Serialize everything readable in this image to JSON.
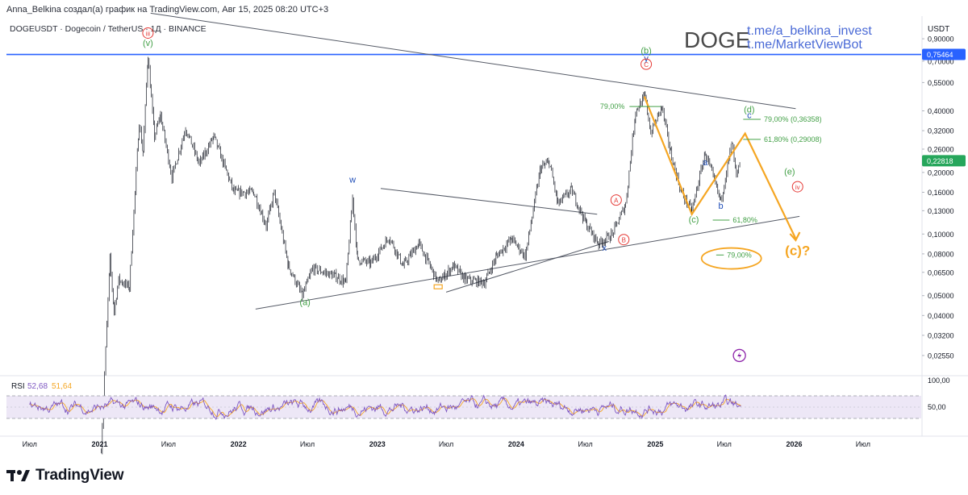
{
  "header": {
    "author_line": "Anna_Belkina создал(а) график на TradingView.com, Авг 15, 2025 08:20 UTC+3",
    "symbol_line": "DOGEUSDT · Dogecoin / TetherUS · 1Д · BINANCE"
  },
  "watermark": {
    "ticker": "DOGE",
    "link1": "t.me/a_belkina_invest",
    "link2": "t.me/MarketViewBot"
  },
  "brand": {
    "name": "TradingView",
    "logo_icon": "tradingview-logo-icon"
  },
  "colors": {
    "candles": "#131722",
    "resistance_line": "#2962ff",
    "projection": "#f5a623",
    "wave_green": "#43a047",
    "wave_red": "#e53935",
    "wave_blue": "#1e4db7",
    "price_badge": "#26a65b",
    "rsi_line": "#7e57c2",
    "rsi_ma": "#f5a623",
    "rsi_band": "#ede7f6"
  },
  "chart_data": [
    {
      "type": "candlestick",
      "scale": "log",
      "currency_label": "USDT",
      "y_ticks": [
        "0,90000",
        "0,70000",
        "0,55000",
        "0,40000",
        "0,32000",
        "0,26000",
        "0,20000",
        "0,16000",
        "0,13000",
        "0,10000",
        "0,08000",
        "0,06500",
        "0,05000",
        "0,04000",
        "0,03200",
        "0,02550"
      ],
      "y_tick_values": [
        0.9,
        0.7,
        0.55,
        0.4,
        0.32,
        0.26,
        0.2,
        0.16,
        0.13,
        0.1,
        0.08,
        0.065,
        0.05,
        0.04,
        0.032,
        0.0255
      ],
      "ylim": [
        0.0205,
        1.08
      ],
      "x_ticks": [
        "Июл",
        "2021",
        "Июл",
        "2022",
        "Июл",
        "2023",
        "Июл",
        "2024",
        "Июл",
        "2025",
        "Июл",
        "2026",
        "Июл"
      ],
      "x_tick_dates": [
        "2020-07-01",
        "2021-01-01",
        "2021-07-01",
        "2022-01-01",
        "2022-07-01",
        "2023-01-01",
        "2023-07-01",
        "2024-01-01",
        "2024-07-01",
        "2025-01-01",
        "2025-07-01",
        "2026-01-01",
        "2026-07-01"
      ],
      "x_range": [
        "2020-05-01",
        "2026-12-01"
      ],
      "resistance_level": {
        "value": 0.75464,
        "label": "0,75464"
      },
      "last_price": {
        "value": 0.22818,
        "label": "0,22818"
      },
      "price_path": [
        [
          "2021-01-05",
          0.009
        ],
        [
          "2021-01-28",
          0.075
        ],
        [
          "2021-02-08",
          0.042
        ],
        [
          "2021-02-20",
          0.06
        ],
        [
          "2021-03-20",
          0.055
        ],
        [
          "2021-04-15",
          0.35
        ],
        [
          "2021-04-25",
          0.25
        ],
        [
          "2021-05-08",
          0.74
        ],
        [
          "2021-05-25",
          0.3
        ],
        [
          "2021-06-10",
          0.38
        ],
        [
          "2021-07-10",
          0.19
        ],
        [
          "2021-08-15",
          0.33
        ],
        [
          "2021-09-20",
          0.22
        ],
        [
          "2021-10-28",
          0.3
        ],
        [
          "2021-12-20",
          0.16
        ],
        [
          "2022-02-10",
          0.16
        ],
        [
          "2022-03-15",
          0.11
        ],
        [
          "2022-04-05",
          0.16
        ],
        [
          "2022-05-12",
          0.07
        ],
        [
          "2022-06-18",
          0.05
        ],
        [
          "2022-07-15",
          0.068
        ],
        [
          "2022-09-15",
          0.062
        ],
        [
          "2022-10-10",
          0.058
        ],
        [
          "2022-10-28",
          0.15
        ],
        [
          "2022-11-10",
          0.075
        ],
        [
          "2022-12-15",
          0.072
        ],
        [
          "2023-02-01",
          0.097
        ],
        [
          "2023-03-10",
          0.07
        ],
        [
          "2023-04-20",
          0.09
        ],
        [
          "2023-06-10",
          0.058
        ],
        [
          "2023-07-20",
          0.07
        ],
        [
          "2023-08-20",
          0.06
        ],
        [
          "2023-10-10",
          0.058
        ],
        [
          "2023-11-10",
          0.078
        ],
        [
          "2023-12-20",
          0.095
        ],
        [
          "2024-01-25",
          0.078
        ],
        [
          "2024-03-05",
          0.21
        ],
        [
          "2024-03-28",
          0.225
        ],
        [
          "2024-04-20",
          0.14
        ],
        [
          "2024-05-25",
          0.165
        ],
        [
          "2024-07-05",
          0.11
        ],
        [
          "2024-08-05",
          0.09
        ],
        [
          "2024-09-10",
          0.1
        ],
        [
          "2024-10-15",
          0.14
        ],
        [
          "2024-11-10",
          0.4
        ],
        [
          "2024-12-05",
          0.47
        ],
        [
          "2024-12-20",
          0.31
        ],
        [
          "2025-01-18",
          0.42
        ],
        [
          "2025-02-10",
          0.25
        ],
        [
          "2025-03-10",
          0.16
        ],
        [
          "2025-04-07",
          0.13
        ],
        [
          "2025-05-12",
          0.25
        ],
        [
          "2025-06-22",
          0.145
        ],
        [
          "2025-07-21",
          0.28
        ],
        [
          "2025-08-02",
          0.19
        ],
        [
          "2025-08-14",
          0.228
        ]
      ],
      "trendlines": [
        {
          "name": "upper-resistance",
          "from": [
            "2021-05-15",
            1.2
          ],
          "to": [
            "2026-01-05",
            0.41
          ]
        },
        {
          "name": "lower-support",
          "from": [
            "2022-02-15",
            0.043
          ],
          "to": [
            "2026-01-15",
            0.122
          ]
        },
        {
          "name": "descending-2023",
          "from": [
            "2023-01-10",
            0.167
          ],
          "to": [
            "2024-08-01",
            0.125
          ]
        },
        {
          "name": "rising-2023",
          "from": [
            "2023-07-01",
            0.052
          ],
          "to": [
            "2024-09-01",
            0.092
          ]
        }
      ],
      "projection_path": [
        [
          "2024-12-03",
          0.47
        ],
        [
          "2025-04-07",
          0.125
        ],
        [
          "2025-08-25",
          0.31
        ],
        [
          "2026-01-05",
          0.095
        ]
      ],
      "fib_levels": [
        {
          "label": "79,00%",
          "value": 0.42,
          "from": "2024-10-25",
          "to": "2025-01-15",
          "label_side": "left"
        },
        {
          "label": "79,00% (0,36358)",
          "value": 0.36358,
          "from": "2025-08-20",
          "to": "2025-10-05",
          "label_side": "right"
        },
        {
          "label": "61,80% (0,29008)",
          "value": 0.29008,
          "from": "2025-08-20",
          "to": "2025-10-05",
          "label_side": "right"
        },
        {
          "label": "61,80%",
          "value": 0.117,
          "from": "2025-06-01",
          "to": "2025-07-15",
          "label_side": "right"
        },
        {
          "label": "79,00%",
          "value": 0.079,
          "from": "2025-06-10",
          "to": "2025-06-30",
          "label_side": "right"
        }
      ],
      "target_zone": {
        "center": [
          "2025-07-20",
          0.076
        ],
        "note": "oval highlight"
      },
      "wave_labels": [
        {
          "text": "iii",
          "date": "2021-05-08",
          "value": 0.93,
          "color": "red",
          "circled": true
        },
        {
          "text": "(v)",
          "date": "2021-05-08",
          "value": 0.83,
          "color": "green"
        },
        {
          "text": "(a)",
          "date": "2022-06-25",
          "value": 0.045,
          "color": "green"
        },
        {
          "text": "w",
          "date": "2022-10-28",
          "value": 0.178,
          "color": "blue"
        },
        {
          "text": "x",
          "date": "2024-08-20",
          "value": 0.083,
          "color": "blue"
        },
        {
          "text": "A",
          "date": "2024-09-20",
          "value": 0.142,
          "color": "red",
          "circled": true
        },
        {
          "text": "B",
          "date": "2024-10-10",
          "value": 0.091,
          "color": "red",
          "circled": true
        },
        {
          "text": "y",
          "date": "2024-12-08",
          "value": 0.7,
          "color": "blue"
        },
        {
          "text": "(b)",
          "date": "2024-12-08",
          "value": 0.76,
          "color": "green"
        },
        {
          "text": "C",
          "date": "2024-12-08",
          "value": 0.655,
          "color": "red",
          "circled": true
        },
        {
          "text": "a",
          "date": "2025-05-12",
          "value": 0.217,
          "color": "blue"
        },
        {
          "text": "b",
          "date": "2025-06-22",
          "value": 0.133,
          "color": "blue"
        },
        {
          "text": "(c)",
          "date": "2025-04-12",
          "value": 0.114,
          "color": "green"
        },
        {
          "text": "(d)",
          "date": "2025-09-05",
          "value": 0.392,
          "color": "green"
        },
        {
          "text": "c",
          "date": "2025-09-05",
          "value": 0.368,
          "color": "blue"
        },
        {
          "text": "(e)",
          "date": "2025-12-20",
          "value": 0.195,
          "color": "green"
        },
        {
          "text": "iv",
          "date": "2026-01-10",
          "value": 0.165,
          "color": "red",
          "circled": true
        },
        {
          "text": "(c)?",
          "date": "2026-01-10",
          "value": 0.079,
          "color": "orange",
          "large": true
        }
      ]
    },
    {
      "type": "line",
      "name_label": "RSI",
      "series": [
        {
          "name": "52,68",
          "color": "#7e57c2",
          "last": 52.68
        },
        {
          "name": "51,64",
          "color": "#f5a623",
          "last": 51.64
        }
      ],
      "ylim": [
        0,
        100
      ],
      "y_ticks": [
        "100,00",
        "50,00"
      ],
      "band": [
        30,
        70
      ],
      "midline": 50
    }
  ]
}
